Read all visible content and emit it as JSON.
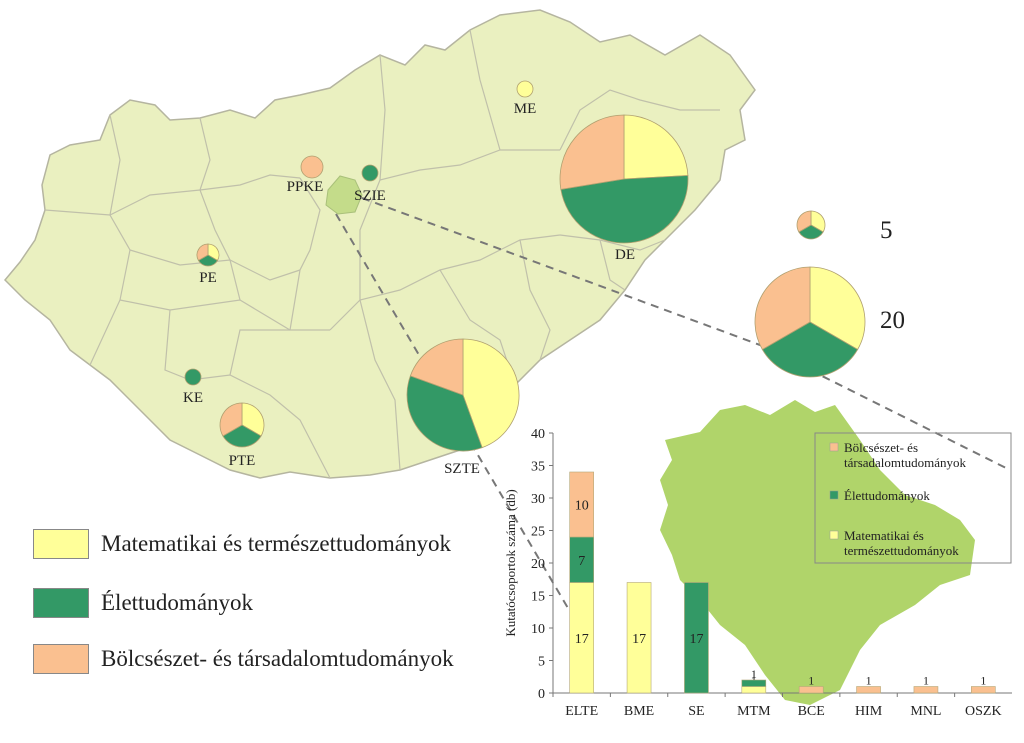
{
  "colors": {
    "math": "#ffff99",
    "life": "#339966",
    "hum": "#fac090",
    "country": "#eaf0c0",
    "budapest": "#c4dc8a",
    "budapest_inset": "#b0d46a",
    "border": "#b5b5a0",
    "pie_edge": "#b0a070",
    "dash": "#777777"
  },
  "icons": {
    "pie_marker": "pie-chart-icon",
    "connector": "dashed-line"
  },
  "institutions": [
    {
      "name": "ME",
      "math": 1,
      "life": 0,
      "hum": 0
    },
    {
      "name": "PPKE",
      "math": 0,
      "life": 0,
      "hum": 1
    },
    {
      "name": "SZIE",
      "math": 0,
      "life": 1,
      "hum": 0
    },
    {
      "name": "DE",
      "math": 14,
      "life": 28,
      "hum": 16
    },
    {
      "name": "PE",
      "math": 1,
      "life": 1,
      "hum": 1
    },
    {
      "name": "KE",
      "math": 0,
      "life": 1,
      "hum": 0
    },
    {
      "name": "PTE",
      "math": 3,
      "life": 3,
      "hum": 3
    },
    {
      "name": "SZTE",
      "math": 16,
      "life": 13,
      "hum": 7
    }
  ],
  "size_legend": [
    {
      "value": "5",
      "math": 1,
      "life": 1,
      "hum": 1
    },
    {
      "value": "20",
      "math": 1,
      "life": 1,
      "hum": 1
    }
  ],
  "legend": {
    "math": "Matematikai és természettudományok",
    "life": "Élettudományok",
    "hum": "Bölcsészet- és társadalomtudományok"
  },
  "chart_data": {
    "type": "bar",
    "stacked": true,
    "categories": [
      "ELTE",
      "BME",
      "SE",
      "MTM",
      "BCE",
      "HIM",
      "MNL",
      "OSZK"
    ],
    "series": [
      {
        "name": "Matematikai és természettudományok",
        "values": [
          17,
          17,
          0,
          1,
          0,
          0,
          0,
          0
        ]
      },
      {
        "name": "Élettudományok",
        "values": [
          7,
          0,
          17,
          1,
          0,
          0,
          0,
          0
        ]
      },
      {
        "name": "Bölcsészet- és társadalomtudományok",
        "values": [
          10,
          0,
          0,
          0,
          1,
          1,
          1,
          1
        ]
      }
    ],
    "data_labels": [
      [
        "17",
        "7",
        "10"
      ],
      [
        "17",
        "",
        ""
      ],
      [
        "",
        "17",
        ""
      ],
      [
        "1",
        "1",
        ""
      ],
      [
        "",
        "",
        "1"
      ],
      [
        "",
        "",
        "1"
      ],
      [
        "",
        "",
        "1"
      ],
      [
        "",
        "",
        "1"
      ]
    ],
    "ylabel": "Kutatócsoportok száma (db)",
    "ylim": [
      0,
      40
    ],
    "yticks": [
      "0",
      "5",
      "10",
      "15",
      "20",
      "25",
      "30",
      "35",
      "40"
    ],
    "legend_entries": [
      [
        "Bölcsészet- és",
        "társadalomtudományok"
      ],
      [
        "Élettudományok"
      ],
      [
        "Matematikai és",
        "természettudományok"
      ]
    ],
    "legend_placement": "top-right",
    "grid": false
  }
}
